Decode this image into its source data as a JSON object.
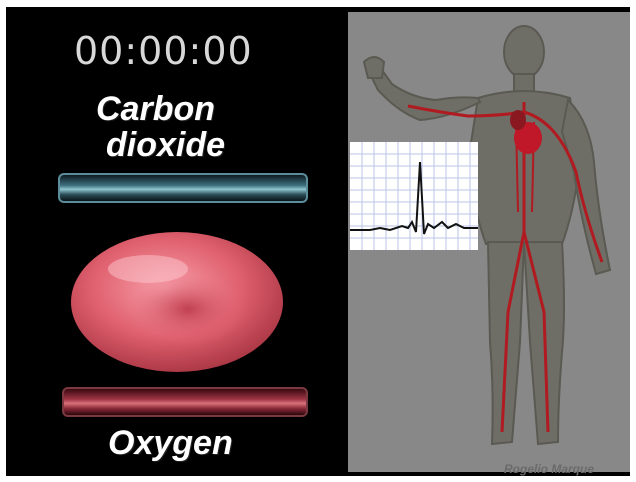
{
  "timer": {
    "value": "00:00:00"
  },
  "labels": {
    "co2_line1": "Carbon",
    "co2_line2": "dioxide",
    "oxygen": "Oxygen"
  },
  "credit": "Rogelio Marque",
  "colors": {
    "background": "#000000",
    "panel": "#888888",
    "co2_bar": "#3d6f7e",
    "oxygen_bar": "#a03545",
    "cell": "#e86a78",
    "vessels": "#b01a20"
  }
}
